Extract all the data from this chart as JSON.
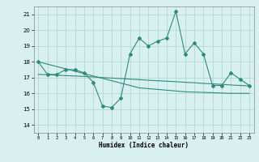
{
  "x": [
    0,
    1,
    2,
    3,
    4,
    5,
    6,
    7,
    8,
    9,
    10,
    11,
    12,
    13,
    14,
    15,
    16,
    17,
    18,
    19,
    20,
    21,
    22,
    23
  ],
  "y_main": [
    18.0,
    17.2,
    17.2,
    17.5,
    17.5,
    17.3,
    16.7,
    15.2,
    15.1,
    15.7,
    18.5,
    19.5,
    19.0,
    19.3,
    19.5,
    21.2,
    18.5,
    19.2,
    18.5,
    16.5,
    16.5,
    17.3,
    16.9,
    16.5
  ],
  "y_trend1": [
    18.0,
    17.85,
    17.7,
    17.55,
    17.4,
    17.25,
    17.1,
    16.95,
    16.8,
    16.65,
    16.5,
    16.35,
    16.3,
    16.25,
    16.2,
    16.15,
    16.1,
    16.08,
    16.06,
    16.04,
    16.02,
    16.0,
    16.0,
    16.0
  ],
  "y_trend2": [
    17.2,
    17.18,
    17.15,
    17.12,
    17.1,
    17.07,
    17.04,
    17.0,
    16.97,
    16.94,
    16.9,
    16.87,
    16.83,
    16.8,
    16.77,
    16.74,
    16.7,
    16.67,
    16.63,
    16.6,
    16.57,
    16.53,
    16.5,
    16.47
  ],
  "line_color": "#2e8b7a",
  "bg_color": "#d8f0f0",
  "grid_color": "#b0d8d8",
  "xlabel": "Humidex (Indice chaleur)",
  "ylim": [
    13.5,
    21.5
  ],
  "xlim": [
    -0.5,
    23.5
  ],
  "yticks": [
    14,
    15,
    16,
    17,
    18,
    19,
    20,
    21
  ],
  "xticks": [
    0,
    1,
    2,
    3,
    4,
    5,
    6,
    7,
    8,
    9,
    10,
    11,
    12,
    13,
    14,
    15,
    16,
    17,
    18,
    19,
    20,
    21,
    22,
    23
  ]
}
